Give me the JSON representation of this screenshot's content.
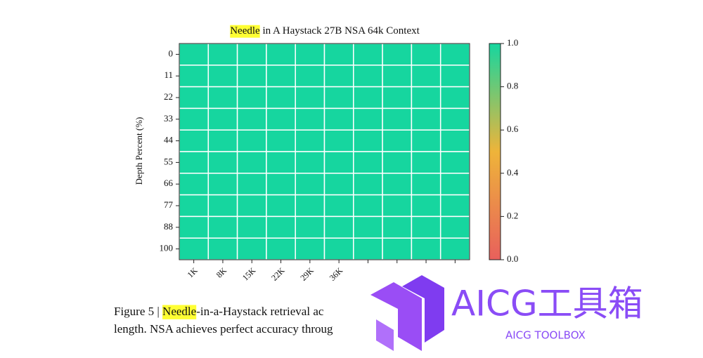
{
  "chart_data": {
    "type": "heatmap",
    "title": [
      {
        "text": "Needle",
        "highlight": true
      },
      {
        "text": " in A Haystack 27B NSA 64k Context"
      }
    ],
    "y_label": "Depth Percent (%)",
    "categories": [
      "1K",
      "8K",
      "15K",
      "22K",
      "29K",
      "36K",
      null,
      null,
      null,
      null
    ],
    "y_categories": [
      0,
      11,
      22,
      33,
      44,
      55,
      66,
      77,
      88,
      100
    ],
    "values": [
      [
        1,
        1,
        1,
        1,
        1,
        1,
        1,
        1,
        1,
        1
      ],
      [
        1,
        1,
        1,
        1,
        1,
        1,
        1,
        1,
        1,
        1
      ],
      [
        1,
        1,
        1,
        1,
        1,
        1,
        1,
        1,
        1,
        1
      ],
      [
        1,
        1,
        1,
        1,
        1,
        1,
        1,
        1,
        1,
        1
      ],
      [
        1,
        1,
        1,
        1,
        1,
        1,
        1,
        1,
        1,
        1
      ],
      [
        1,
        1,
        1,
        1,
        1,
        1,
        1,
        1,
        1,
        1
      ],
      [
        1,
        1,
        1,
        1,
        1,
        1,
        1,
        1,
        1,
        1
      ],
      [
        1,
        1,
        1,
        1,
        1,
        1,
        1,
        1,
        1,
        1
      ],
      [
        1,
        1,
        1,
        1,
        1,
        1,
        1,
        1,
        1,
        1
      ],
      [
        1,
        1,
        1,
        1,
        1,
        1,
        1,
        1,
        1,
        1
      ]
    ],
    "colors": [
      "#e8605c",
      "#eeb43a",
      "#16d69f"
    ],
    "clim": [
      0,
      1
    ],
    "cticks": [
      {
        "value": 0,
        "label": "0.0"
      },
      0.2,
      0.4,
      0.6,
      0.8,
      {
        "value": 1,
        "label": "1.0"
      }
    ]
  },
  "caption": {
    "lines": [
      [
        {
          "text": "Figure 5 | "
        },
        {
          "text": "Needle",
          "highlight": true
        },
        {
          "text": "-in-a-Haystack retrieval ac"
        }
      ],
      [
        {
          "text": "length. NSA achieves perfect accuracy throug"
        }
      ]
    ]
  },
  "watermark": {
    "title": "AICG工具箱",
    "subtitle": "AICG TOOLBOX"
  }
}
